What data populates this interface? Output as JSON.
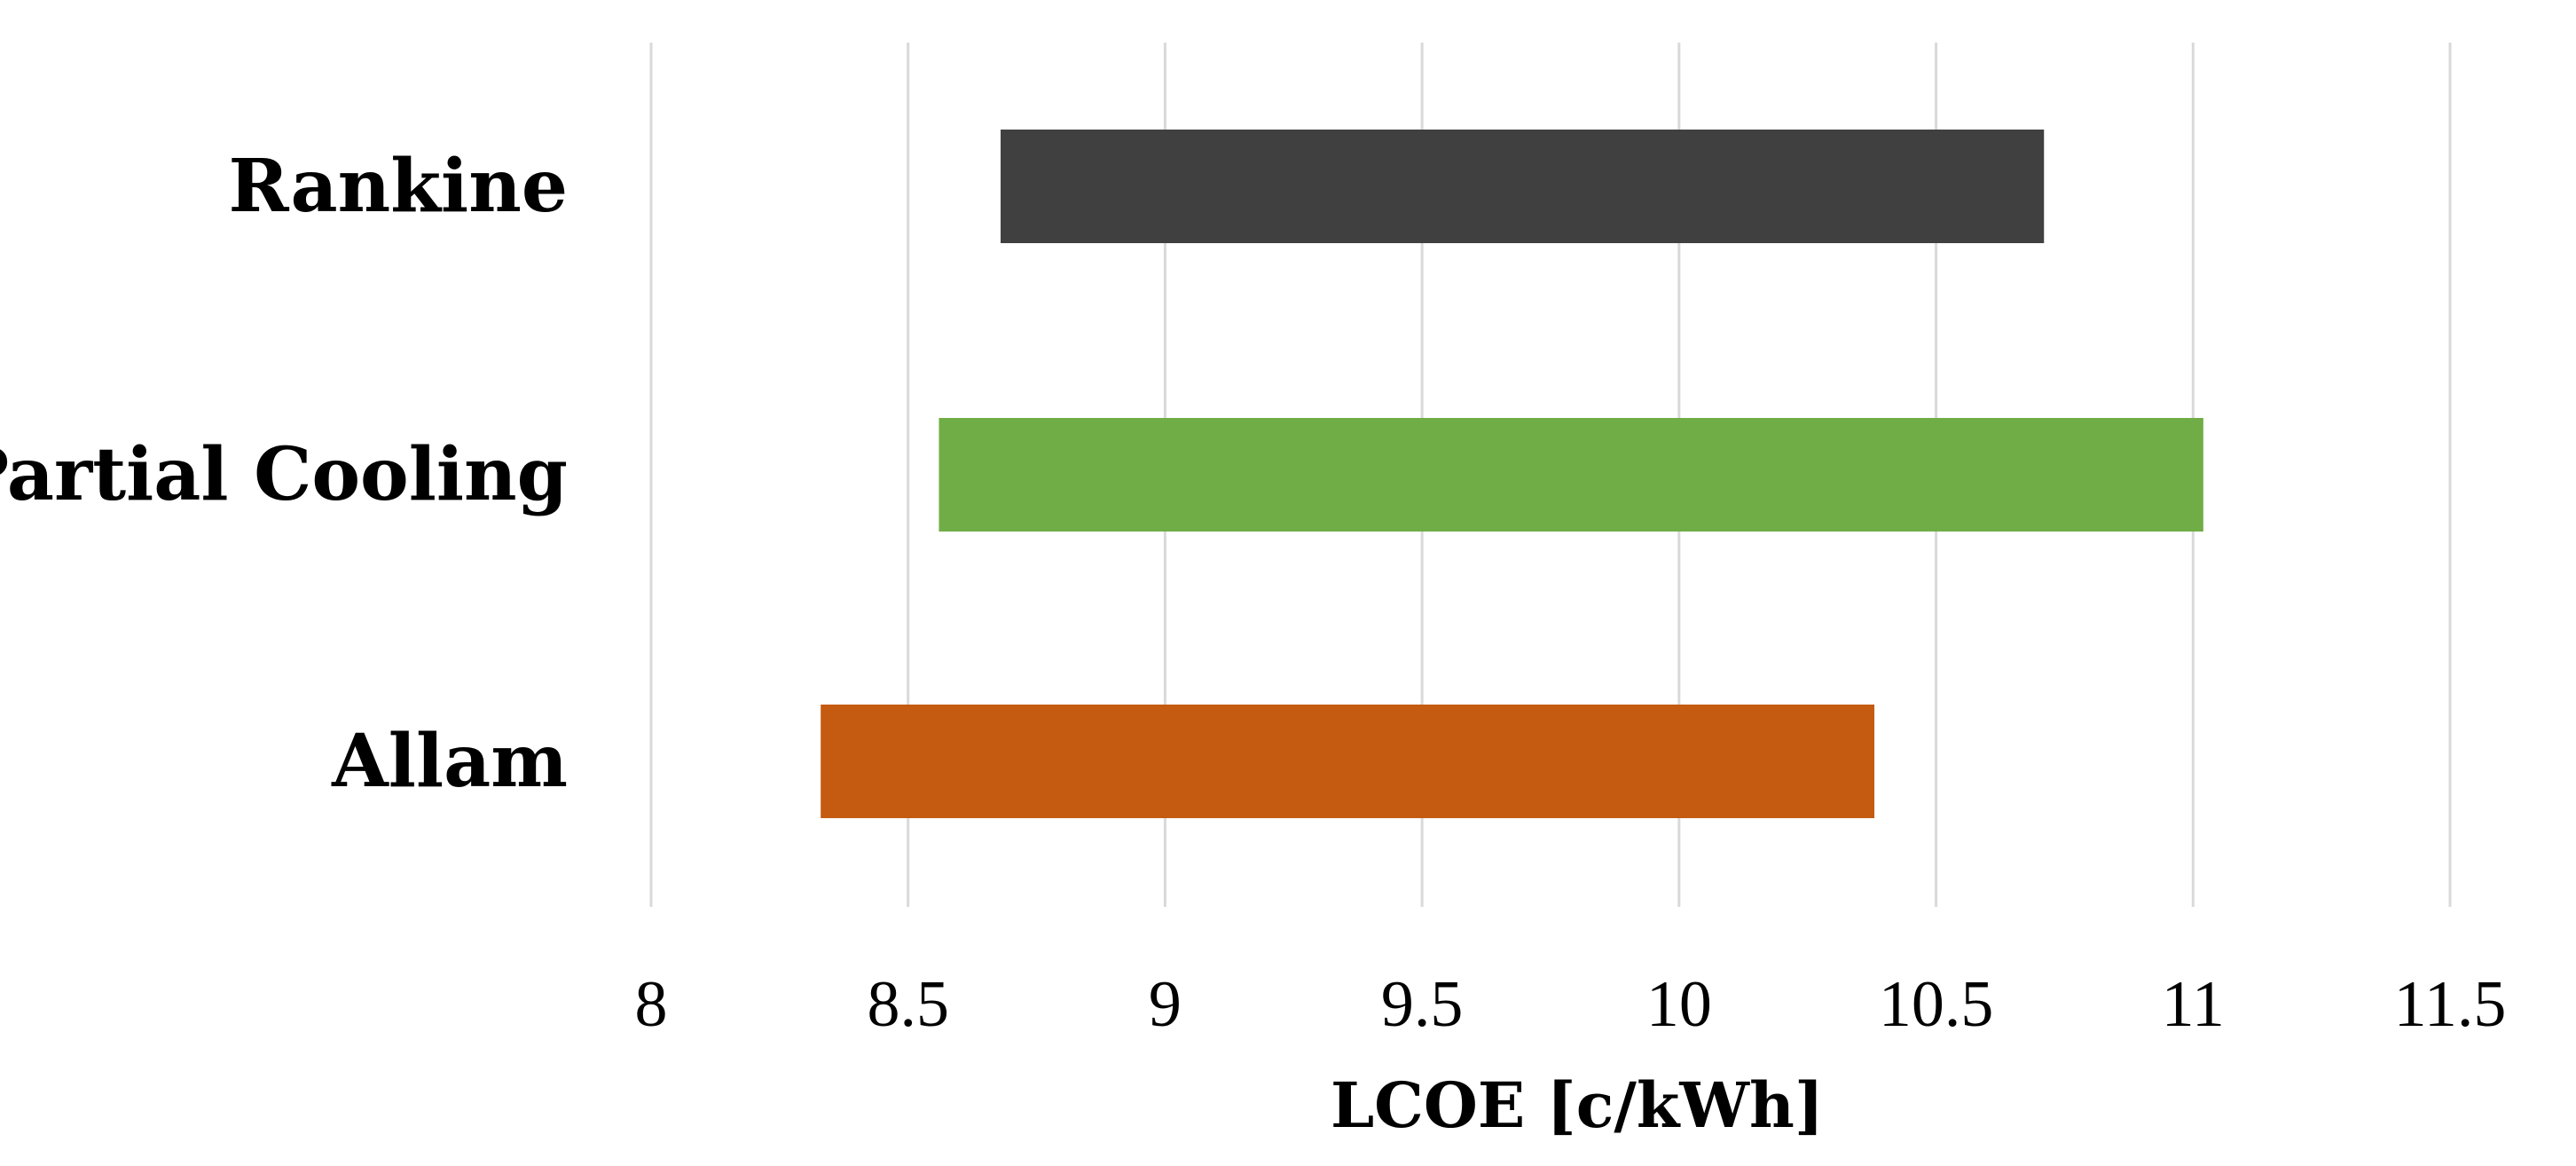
{
  "chart_data": {
    "type": "bar",
    "orientation": "horizontal",
    "subtype": "floating-range",
    "categories": [
      "Rankine",
      "Partial Cooling",
      "Allam"
    ],
    "ranges": [
      {
        "category": "Rankine",
        "min": 8.68,
        "max": 10.71,
        "color": "#404040"
      },
      {
        "category": "Partial Cooling",
        "min": 8.56,
        "max": 11.02,
        "color": "#70ad47"
      },
      {
        "category": "Allam",
        "min": 8.33,
        "max": 10.38,
        "color": "#c55a11"
      }
    ],
    "xlabel": "LCOE [c/kWh]",
    "xlim": [
      8,
      11.5
    ],
    "xticks": [
      "8",
      "8.5",
      "9",
      "9.5",
      "10",
      "10.5",
      "11",
      "11.5"
    ],
    "grid": "vertical",
    "legend": "none"
  }
}
